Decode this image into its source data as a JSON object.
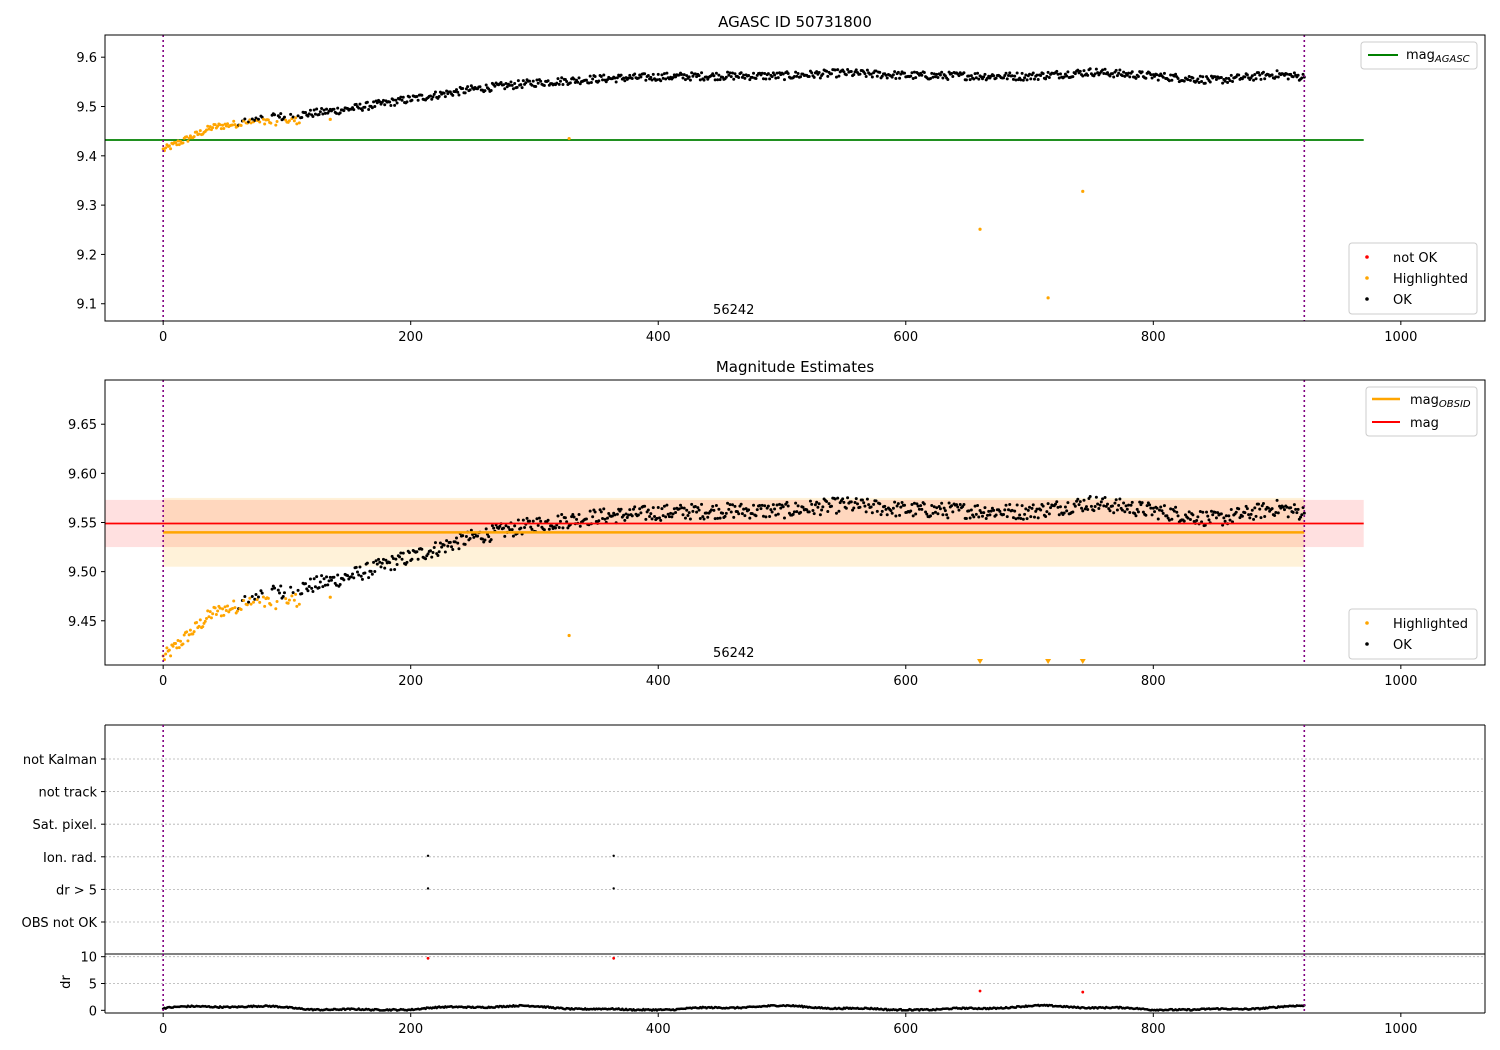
{
  "chart_data": [
    {
      "type": "scatter",
      "title": "AGASC ID 50731800",
      "xlabel": "",
      "ylabel": "",
      "xlim": [
        -47,
        1068
      ],
      "ylim": [
        9.065,
        9.645
      ],
      "x_ticks": [
        0,
        200,
        400,
        600,
        800,
        1000
      ],
      "y_ticks": [
        9.1,
        9.2,
        9.3,
        9.4,
        9.5,
        9.6
      ],
      "vertical_lines_x": [
        0,
        922
      ],
      "annotation": {
        "text": "56242",
        "x": 461,
        "y": 9.075
      },
      "hlines": [
        {
          "name": "mag_AGASC",
          "label_main": "mag",
          "label_sub": "AGASC",
          "color": "#008000",
          "y": 9.432,
          "x_range": [
            -47,
            970
          ]
        }
      ],
      "legend_lines_location": "upper right",
      "legend_points_location": "lower right",
      "legend_points": [
        {
          "label": "not OK",
          "color": "#ff0000"
        },
        {
          "label": "Highlighted",
          "color": "#ffa500"
        },
        {
          "label": "OK",
          "color": "#000000"
        }
      ],
      "series_trend": {
        "ok": [
          [
            0,
            9.42
          ],
          [
            30,
            9.455
          ],
          [
            60,
            9.47
          ],
          [
            100,
            9.48
          ],
          [
            150,
            9.495
          ],
          [
            200,
            9.515
          ],
          [
            250,
            9.535
          ],
          [
            300,
            9.548
          ],
          [
            350,
            9.556
          ],
          [
            400,
            9.56
          ],
          [
            450,
            9.562
          ],
          [
            500,
            9.562
          ],
          [
            550,
            9.568
          ],
          [
            600,
            9.563
          ],
          [
            650,
            9.562
          ],
          [
            700,
            9.561
          ],
          [
            750,
            9.57
          ],
          [
            800,
            9.562
          ],
          [
            850,
            9.553
          ],
          [
            900,
            9.565
          ],
          [
            920,
            9.56
          ]
        ],
        "ok_noise": 0.008,
        "highlighted_x_range": [
          0,
          110
        ],
        "highlighted_trend": [
          [
            0,
            9.412
          ],
          [
            20,
            9.435
          ],
          [
            40,
            9.458
          ],
          [
            60,
            9.465
          ],
          [
            80,
            9.468
          ],
          [
            100,
            9.47
          ],
          [
            110,
            9.472
          ]
        ],
        "highlighted_noise": 0.007,
        "highlighted_outliers": [
          [
            328,
            9.435
          ],
          [
            135,
            9.474
          ],
          [
            660,
            9.251
          ],
          [
            715,
            9.112
          ],
          [
            743,
            9.328
          ]
        ]
      }
    },
    {
      "type": "scatter",
      "title": "Magnitude Estimates",
      "xlabel": "",
      "ylabel": "",
      "xlim": [
        -47,
        1068
      ],
      "ylim": [
        9.405,
        9.695
      ],
      "x_ticks": [
        0,
        200,
        400,
        600,
        800,
        1000
      ],
      "y_ticks": [
        9.45,
        9.5,
        9.55,
        9.6,
        9.65
      ],
      "vertical_lines_x": [
        0,
        922
      ],
      "annotation": {
        "text": "56242",
        "x": 461,
        "y": 9.415
      },
      "hlines": [
        {
          "name": "mag_OBSID",
          "label_main": "mag",
          "label_sub": "OBSID",
          "color": "#ffa500",
          "y": 9.54,
          "x_range": [
            0,
            922
          ],
          "band": [
            9.505,
            9.575
          ],
          "band_color": "#ffa500"
        },
        {
          "name": "mag",
          "label_main": "mag",
          "label_sub": "",
          "color": "#ff0000",
          "y": 9.549,
          "x_range": [
            -47,
            970
          ],
          "band": [
            9.525,
            9.573
          ],
          "band_color": "#ff0000"
        }
      ],
      "legend_lines_location": "upper right",
      "legend_points_location": "lower right",
      "legend_points": [
        {
          "label": "Highlighted",
          "color": "#ffa500"
        },
        {
          "label": "OK",
          "color": "#000000"
        }
      ],
      "offscale_markers_x": [
        660,
        715,
        743
      ]
    },
    {
      "type": "scatter",
      "title": "",
      "xlim": [
        -47,
        1068
      ],
      "flag_rows": [
        "not Kalman",
        "not track",
        "Sat. pixel.",
        "Ion. rad.",
        "dr > 5",
        "OBS not OK"
      ],
      "flag_points": [
        {
          "row": "Ion. rad.",
          "x": [
            214,
            364
          ]
        },
        {
          "row": "dr > 5",
          "x": [
            214,
            364
          ]
        }
      ],
      "vertical_lines_x": [
        0,
        922
      ]
    },
    {
      "type": "scatter",
      "title": "",
      "ylabel": "dr",
      "xlim": [
        -47,
        1068
      ],
      "ylim": [
        -0.5,
        10.5
      ],
      "x_ticks": [
        0,
        200,
        400,
        600,
        800,
        1000
      ],
      "y_ticks": [
        0,
        5,
        10
      ],
      "vertical_lines_x": [
        0,
        922
      ],
      "red_points": [
        [
          214,
          9.7
        ],
        [
          364,
          9.7
        ],
        [
          660,
          3.6
        ],
        [
          743,
          3.4
        ]
      ],
      "dr_baseline": 0.4,
      "dr_noise": 0.25
    }
  ]
}
